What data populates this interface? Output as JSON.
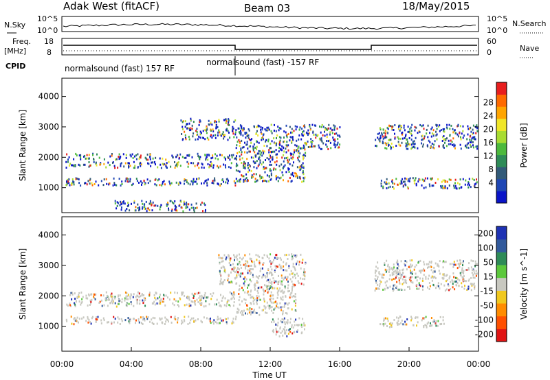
{
  "header": {
    "radar": "Adak West (fitACF)",
    "beam": "Beam 03",
    "date": "18/May/2015"
  },
  "top_panels": {
    "nsky_label": "N.Sky",
    "nsky_ticks": [
      "10^5",
      "10^0"
    ],
    "nsearch_label": "N.Search",
    "nsearch_ticks": [
      "10^5",
      "10^0"
    ],
    "freq_label": "Freq.",
    "freq_unit": "[MHz]",
    "freq_ticks": [
      "18",
      "8"
    ],
    "nave_label": "Nave",
    "nave_ticks": [
      "60",
      "0"
    ],
    "cpid_label": "CPID",
    "cpid_segments": [
      {
        "text": "normalsound (fast) 157 RF"
      },
      {
        "text": "normalsound (fast) -157 RF"
      }
    ]
  },
  "chart_data": [
    {
      "type": "heatmap",
      "title": "",
      "xlabel": "",
      "ylabel": "Slant Range [km]",
      "xlim": [
        0,
        24
      ],
      "ylim": [
        180,
        4600
      ],
      "yticks": [
        1000,
        2000,
        3000,
        4000
      ],
      "colorbar": {
        "label": "Power [dB]",
        "ticks": [
          "4",
          "8",
          "12",
          "16",
          "20",
          "24",
          "28"
        ],
        "colors": [
          "#0a14c8",
          "#1e46b4",
          "#325a78",
          "#2e8b57",
          "#4cb93c",
          "#a8dc32",
          "#f0e628",
          "#ffa500",
          "#ff6a00",
          "#e81e1e"
        ]
      },
      "echo_bands": [
        {
          "t0": 0.2,
          "t1": 10.0,
          "r0": 1950,
          "r1": 2150
        },
        {
          "t0": 0.2,
          "t1": 10.0,
          "r0": 1680,
          "r1": 1880
        },
        {
          "t0": 0.2,
          "t1": 10.0,
          "r0": 1100,
          "r1": 1350
        },
        {
          "t0": 6.8,
          "t1": 10.0,
          "r0": 2600,
          "r1": 3300
        },
        {
          "t0": 10.0,
          "t1": 14.0,
          "r0": 1200,
          "r1": 2300
        },
        {
          "t0": 10.0,
          "t1": 16.0,
          "r0": 2300,
          "r1": 3100
        },
        {
          "t0": 18.0,
          "t1": 23.9,
          "r0": 2300,
          "r1": 3100
        },
        {
          "t0": 18.3,
          "t1": 23.9,
          "r0": 1000,
          "r1": 1350
        },
        {
          "t0": 3.0,
          "t1": 8.5,
          "r0": 250,
          "r1": 600
        }
      ]
    },
    {
      "type": "heatmap",
      "title": "",
      "xlabel": "Time UT",
      "ylabel": "Slant Range [km]",
      "xlim": [
        0,
        24
      ],
      "ylim": [
        180,
        4600
      ],
      "yticks": [
        1000,
        2000,
        3000,
        4000
      ],
      "xticks": [
        "00:00",
        "04:00",
        "08:00",
        "12:00",
        "16:00",
        "20:00",
        "00:00"
      ],
      "colorbar": {
        "label": "Velocity [m s^-1]",
        "ticks": [
          "200",
          "100",
          "50",
          "15",
          "-15",
          "-50",
          "-100",
          "-200"
        ],
        "colors": [
          "#1e32b4",
          "#325a9c",
          "#2e8b57",
          "#5cc83c",
          "#c8c8c0",
          "#f0c81e",
          "#ff8c00",
          "#ff5000",
          "#e01414"
        ]
      },
      "echo_bands": [
        {
          "t0": 0.2,
          "t1": 10.0,
          "r0": 1680,
          "r1": 2150
        },
        {
          "t0": 0.2,
          "t1": 10.0,
          "r0": 1100,
          "r1": 1350
        },
        {
          "t0": 9.0,
          "t1": 14.0,
          "r0": 2400,
          "r1": 3400
        },
        {
          "t0": 10.0,
          "t1": 13.5,
          "r0": 1400,
          "r1": 2400
        },
        {
          "t0": 12.0,
          "t1": 14.0,
          "r0": 700,
          "r1": 1300
        },
        {
          "t0": 18.0,
          "t1": 23.9,
          "r0": 2200,
          "r1": 3200
        },
        {
          "t0": 18.3,
          "t1": 22.0,
          "r0": 1000,
          "r1": 1350
        }
      ]
    }
  ]
}
